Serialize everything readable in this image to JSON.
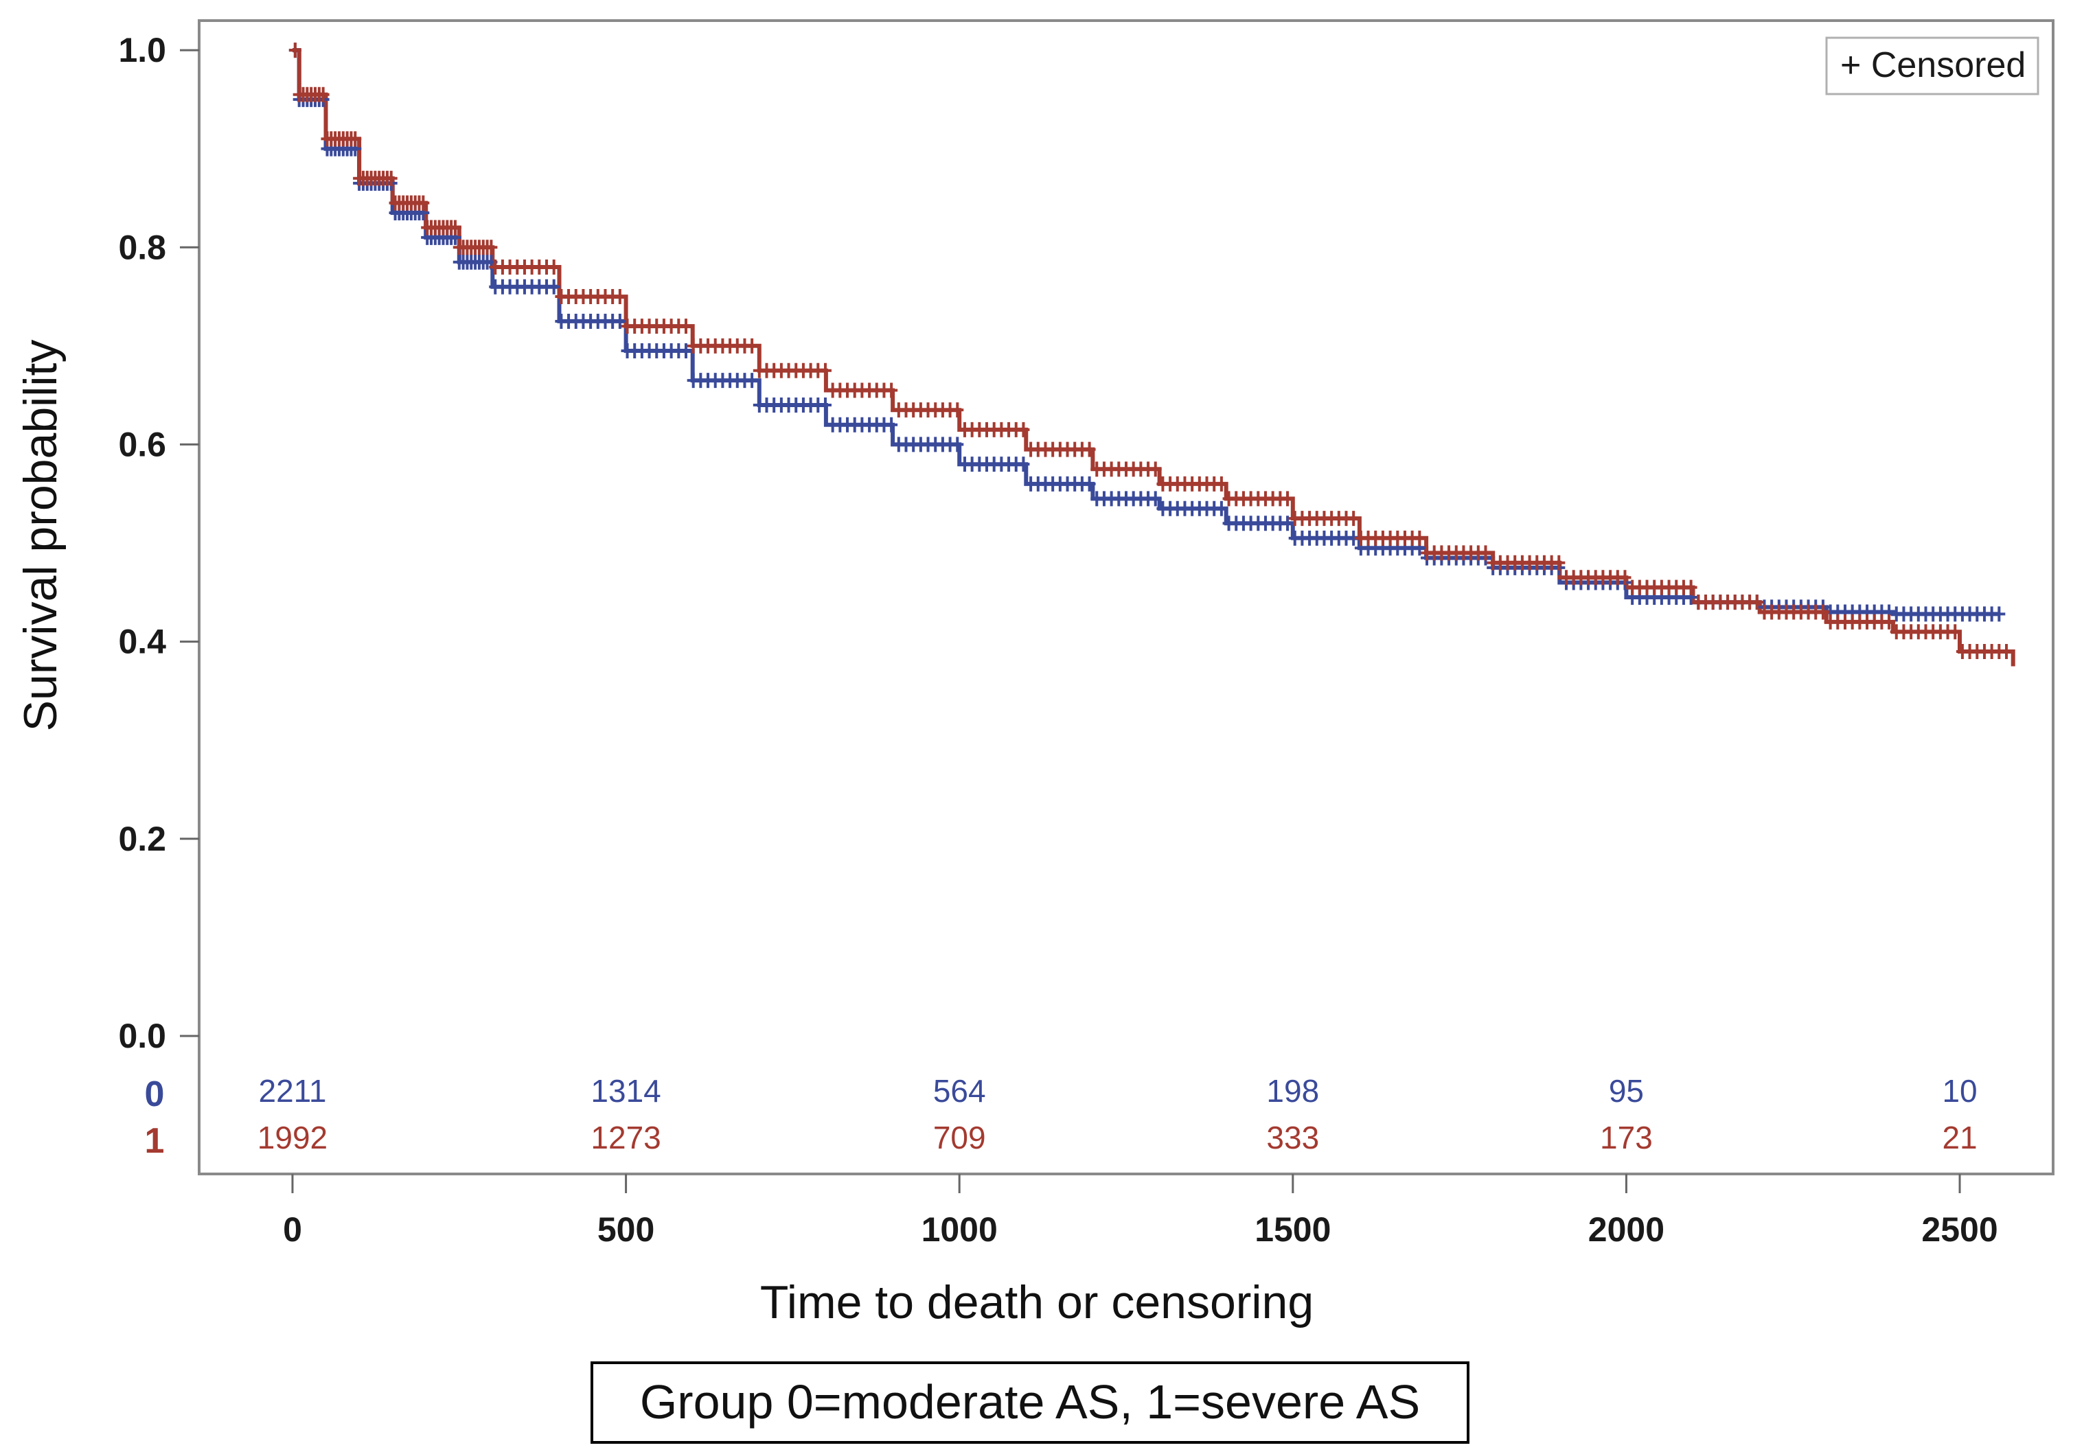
{
  "chart_data": {
    "type": "line",
    "subtype": "kaplan-meier",
    "ylabel": "Survival probability",
    "xlabel": "Time to death or censoring",
    "xlim": [
      -140,
      2640
    ],
    "ylim": [
      -0.14,
      1.03
    ],
    "xticks": [
      0,
      500,
      1000,
      1500,
      2000,
      2500
    ],
    "xtick_labels": [
      "0",
      "500",
      "1000",
      "1500",
      "2000",
      "2500"
    ],
    "yticks": [
      0.0,
      0.2,
      0.4,
      0.6,
      0.8,
      1.0
    ],
    "ytick_labels": [
      "0.0",
      "0.2",
      "0.4",
      "0.6",
      "0.8",
      "1.0"
    ],
    "legend": {
      "label": "+ Censored",
      "position": "top-right"
    },
    "caption": "Group 0=moderate AS, 1=severe AS",
    "series": [
      {
        "name": "0",
        "color": "#3a4a9a",
        "points": [
          [
            0,
            1.0
          ],
          [
            10,
            0.95
          ],
          [
            50,
            0.9
          ],
          [
            100,
            0.865
          ],
          [
            150,
            0.835
          ],
          [
            200,
            0.81
          ],
          [
            250,
            0.785
          ],
          [
            300,
            0.76
          ],
          [
            400,
            0.725
          ],
          [
            500,
            0.695
          ],
          [
            600,
            0.665
          ],
          [
            700,
            0.64
          ],
          [
            800,
            0.62
          ],
          [
            900,
            0.6
          ],
          [
            1000,
            0.58
          ],
          [
            1100,
            0.56
          ],
          [
            1200,
            0.545
          ],
          [
            1300,
            0.535
          ],
          [
            1400,
            0.52
          ],
          [
            1500,
            0.505
          ],
          [
            1600,
            0.495
          ],
          [
            1700,
            0.485
          ],
          [
            1800,
            0.475
          ],
          [
            1900,
            0.46
          ],
          [
            2000,
            0.445
          ],
          [
            2100,
            0.44
          ],
          [
            2200,
            0.435
          ],
          [
            2300,
            0.43
          ],
          [
            2400,
            0.428
          ],
          [
            2560,
            0.428
          ]
        ]
      },
      {
        "name": "1",
        "color": "#a43a30",
        "points": [
          [
            0,
            1.0
          ],
          [
            10,
            0.955
          ],
          [
            50,
            0.91
          ],
          [
            100,
            0.87
          ],
          [
            150,
            0.845
          ],
          [
            200,
            0.82
          ],
          [
            250,
            0.8
          ],
          [
            300,
            0.78
          ],
          [
            400,
            0.75
          ],
          [
            500,
            0.72
          ],
          [
            600,
            0.7
          ],
          [
            700,
            0.675
          ],
          [
            800,
            0.655
          ],
          [
            900,
            0.635
          ],
          [
            1000,
            0.615
          ],
          [
            1100,
            0.595
          ],
          [
            1200,
            0.575
          ],
          [
            1300,
            0.56
          ],
          [
            1400,
            0.545
          ],
          [
            1500,
            0.525
          ],
          [
            1600,
            0.505
          ],
          [
            1700,
            0.49
          ],
          [
            1800,
            0.48
          ],
          [
            1900,
            0.465
          ],
          [
            2000,
            0.455
          ],
          [
            2100,
            0.44
          ],
          [
            2200,
            0.43
          ],
          [
            2300,
            0.42
          ],
          [
            2400,
            0.41
          ],
          [
            2500,
            0.39
          ],
          [
            2580,
            0.375
          ]
        ]
      }
    ],
    "risk_table": {
      "times": [
        0,
        500,
        1000,
        1500,
        2000,
        2500
      ],
      "rows": [
        {
          "group": "0",
          "color": "#3a4a9a",
          "counts": [
            "2211",
            "1314",
            "564",
            "198",
            "95",
            "10"
          ]
        },
        {
          "group": "1",
          "color": "#a43a30",
          "counts": [
            "1992",
            "1273",
            "709",
            "333",
            "173",
            "21"
          ]
        }
      ]
    }
  }
}
